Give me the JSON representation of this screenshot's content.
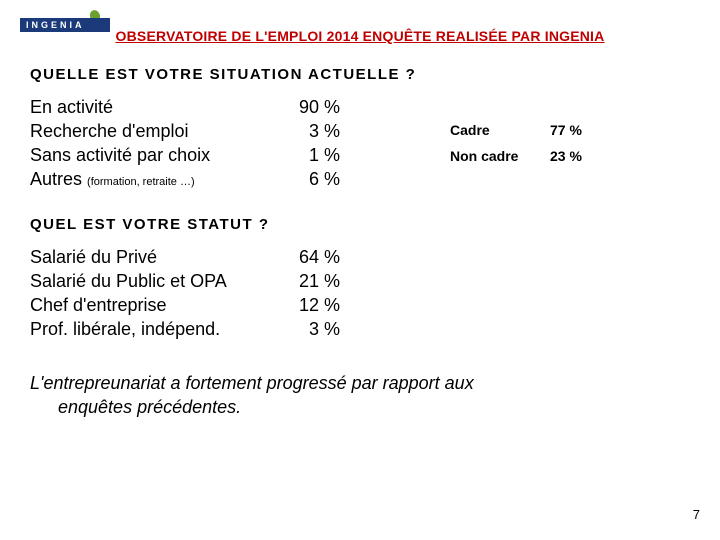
{
  "logo": {
    "text": "INGENIA"
  },
  "header": {
    "title": "OBSERVATOIRE DE L'EMPLOI 2014 ENQUÊTE REALISÉE PAR INGENIA"
  },
  "q1": {
    "question": "QUELLE EST VOTRE SITUATION ACTUELLE ?",
    "rows": [
      {
        "label": "En activité",
        "value": "90 %"
      },
      {
        "label": "Recherche d'emploi",
        "value": "3 %"
      },
      {
        "label": "Sans activité par choix",
        "value": "1 %"
      },
      {
        "label": "Autres",
        "sublabel": "(formation, retraite …)",
        "value": "6 %"
      }
    ],
    "side": [
      {
        "label": "Cadre",
        "value": "77 %"
      },
      {
        "label": "Non cadre",
        "value": "23 %"
      }
    ]
  },
  "q2": {
    "question": "QUEL EST VOTRE STATUT ?",
    "rows": [
      {
        "label": "Salarié du Privé",
        "value": "64 %"
      },
      {
        "label": "Salarié du Public et OPA",
        "value": "21 %"
      },
      {
        "label": "Chef d'entreprise",
        "value": "12 %"
      },
      {
        "label": "Prof. libérale, indépend.",
        "value": "3 %"
      }
    ]
  },
  "footnote": {
    "line1": "L'entrepreunariat a fortement progressé par rapport aux",
    "line2": "enquêtes précédentes."
  },
  "pagenum": "7"
}
